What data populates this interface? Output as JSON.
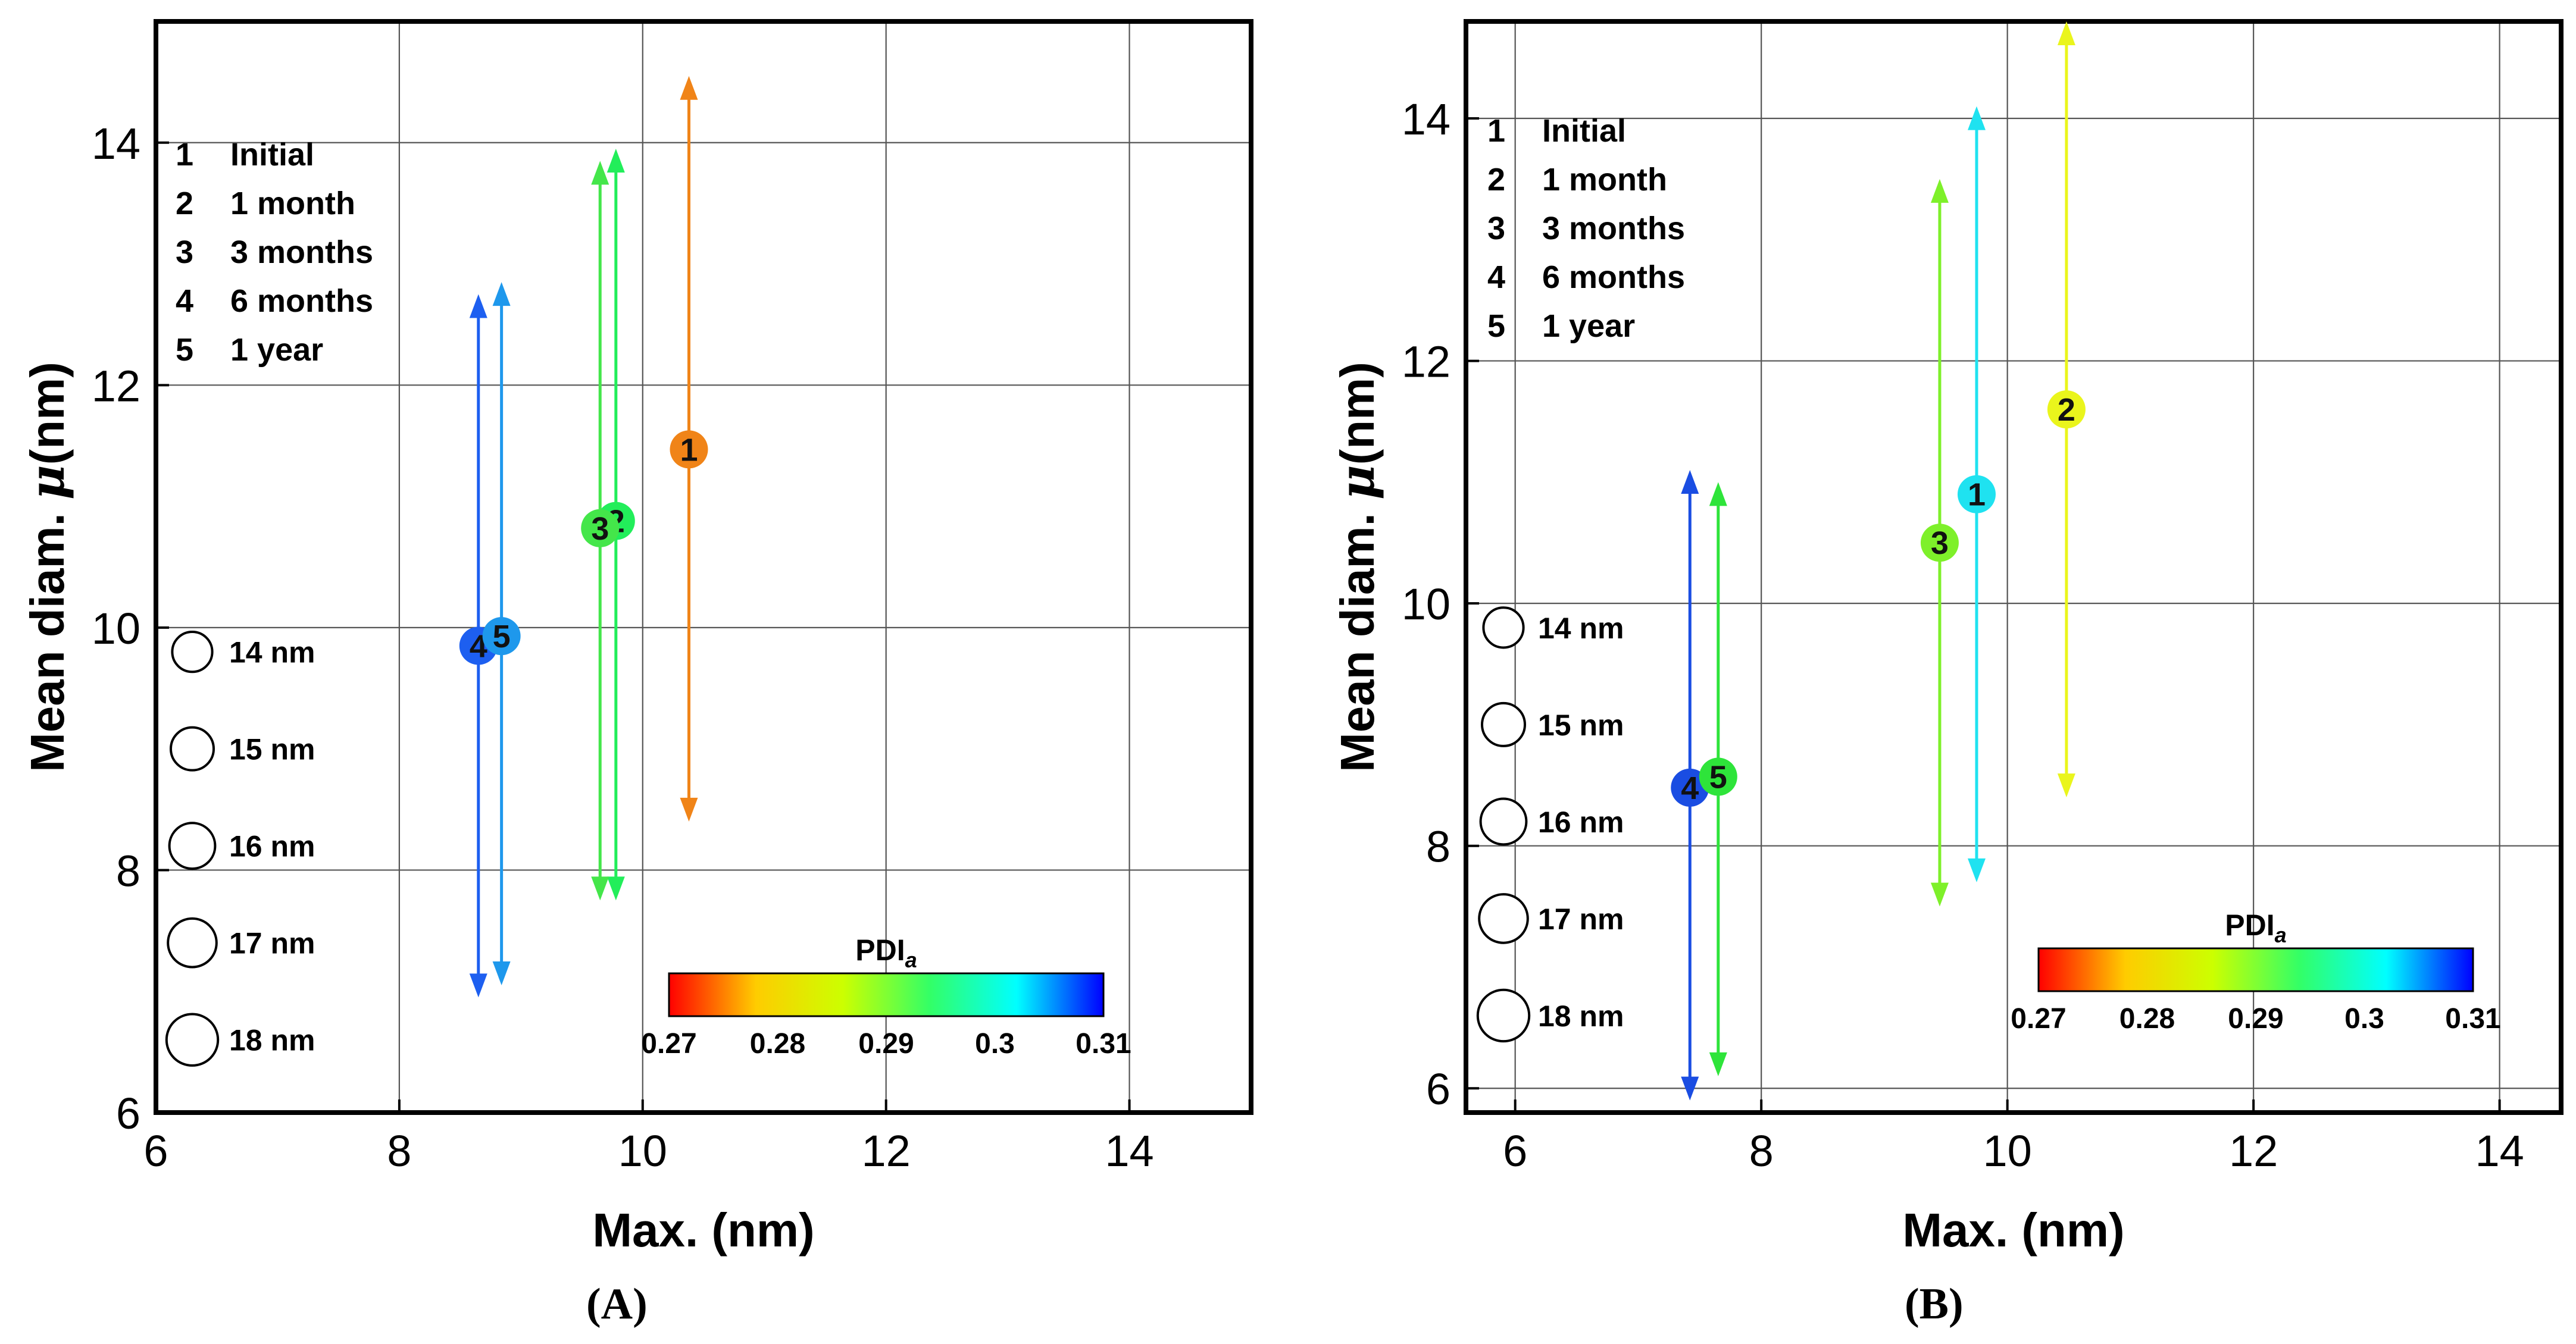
{
  "chart_data": [
    {
      "type": "scatter",
      "panel_label": "(A)",
      "xlabel": "Max. (nm)",
      "ylabel_main": "Mean diam. ",
      "ylabel_symbol": "μ",
      "ylabel_unit": "(nm)",
      "xlim": [
        6,
        15
      ],
      "ylim": [
        6,
        15
      ],
      "xticks": [
        6,
        8,
        10,
        12,
        14
      ],
      "yticks": [
        6,
        8,
        10,
        12,
        14
      ],
      "grid": true,
      "points": [
        {
          "label": "1",
          "x": 10.38,
          "y": 11.47,
          "y_low": 8.4,
          "y_high": 14.55,
          "pdi": 0.2745,
          "color": "#f08418"
        },
        {
          "label": "2",
          "x": 9.78,
          "y": 10.88,
          "y_low": 7.75,
          "y_high": 13.95,
          "pdi": 0.2905,
          "color": "#22ee5a"
        },
        {
          "label": "3",
          "x": 9.65,
          "y": 10.82,
          "y_low": 7.75,
          "y_high": 13.85,
          "pdi": 0.2895,
          "color": "#44e64a"
        },
        {
          "label": "4",
          "x": 8.65,
          "y": 9.85,
          "y_low": 6.95,
          "y_high": 12.75,
          "pdi": 0.307,
          "color": "#1d5ff0"
        },
        {
          "label": "5",
          "x": 8.84,
          "y": 9.93,
          "y_low": 7.05,
          "y_high": 12.85,
          "pdi": 0.3015,
          "color": "#1e98ec"
        }
      ],
      "legend_entries": [
        {
          "num": "1",
          "text": "Initial"
        },
        {
          "num": "2",
          "text": "1 month"
        },
        {
          "num": "3",
          "text": "3 months"
        },
        {
          "num": "4",
          "text": "6 months"
        },
        {
          "num": "5",
          "text": "1 year"
        }
      ],
      "size_legend": [
        {
          "label": "14 nm",
          "y": 9.8,
          "size": 14
        },
        {
          "label": "15 nm",
          "y": 9.0,
          "size": 15
        },
        {
          "label": "16 nm",
          "y": 8.2,
          "size": 16
        },
        {
          "label": "17 nm",
          "y": 7.4,
          "size": 17
        },
        {
          "label": "18 nm",
          "y": 6.6,
          "size": 18
        }
      ],
      "colorbar": {
        "title": "PDI",
        "title_sub": "a",
        "min": 0.27,
        "max": 0.31,
        "ticks": [
          "0.27",
          "0.28",
          "0.29",
          "0.3",
          "0.31"
        ],
        "stops": [
          "#ff0000",
          "#ffcc00",
          "#ccff00",
          "#33ff66",
          "#00ffff",
          "#0000ff"
        ]
      }
    },
    {
      "type": "scatter",
      "panel_label": "(B)",
      "xlabel": "Max. (nm)",
      "ylabel_main": "Mean diam. ",
      "ylabel_symbol": "μ",
      "ylabel_unit": "(nm)",
      "xlim": [
        5.6,
        14.5
      ],
      "ylim": [
        5.8,
        14.8
      ],
      "xticks": [
        6,
        8,
        10,
        12,
        14
      ],
      "yticks": [
        6,
        8,
        10,
        12,
        14
      ],
      "grid": true,
      "points": [
        {
          "label": "1",
          "x": 9.75,
          "y": 10.9,
          "y_low": 7.7,
          "y_high": 14.1,
          "pdi": 0.297,
          "color": "#1fe2f0"
        },
        {
          "label": "2",
          "x": 10.48,
          "y": 11.6,
          "y_low": 8.4,
          "y_high": 14.8,
          "pdi": 0.279,
          "color": "#eaf51c"
        },
        {
          "label": "3",
          "x": 9.45,
          "y": 10.5,
          "y_low": 7.5,
          "y_high": 13.5,
          "pdi": 0.286,
          "color": "#7ef02a"
        },
        {
          "label": "4",
          "x": 7.42,
          "y": 8.48,
          "y_low": 5.9,
          "y_high": 11.1,
          "pdi": 0.308,
          "color": "#1a4de2"
        },
        {
          "label": "5",
          "x": 7.65,
          "y": 8.57,
          "y_low": 6.1,
          "y_high": 11.0,
          "pdi": 0.291,
          "color": "#2ee43a"
        }
      ],
      "legend_entries": [
        {
          "num": "1",
          "text": "Initial"
        },
        {
          "num": "2",
          "text": "1 month"
        },
        {
          "num": "3",
          "text": "3 months"
        },
        {
          "num": "4",
          "text": "6 months"
        },
        {
          "num": "5",
          "text": "1 year"
        }
      ],
      "size_legend": [
        {
          "label": "14 nm",
          "y": 9.8,
          "size": 14
        },
        {
          "label": "15 nm",
          "y": 9.0,
          "size": 15
        },
        {
          "label": "16 nm",
          "y": 8.2,
          "size": 16
        },
        {
          "label": "17 nm",
          "y": 7.4,
          "size": 17
        },
        {
          "label": "18 nm",
          "y": 6.6,
          "size": 18
        }
      ],
      "colorbar": {
        "title": "PDI",
        "title_sub": "a",
        "min": 0.27,
        "max": 0.31,
        "ticks": [
          "0.27",
          "0.28",
          "0.29",
          "0.3",
          "0.31"
        ],
        "stops": [
          "#ff0000",
          "#ffcc00",
          "#ccff00",
          "#33ff66",
          "#00ffff",
          "#0000ff"
        ]
      }
    }
  ]
}
